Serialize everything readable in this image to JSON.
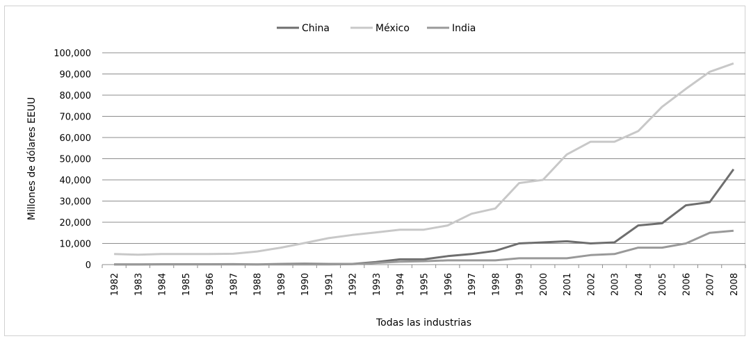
{
  "chart_data": {
    "type": "line",
    "title": "",
    "xlabel": "Todas las industrias",
    "ylabel": "Millones de dólares EEUU",
    "categories": [
      "1982",
      "1983",
      "1984",
      "1985",
      "1986",
      "1987",
      "1988",
      "1989",
      "1990",
      "1991",
      "1992",
      "1993",
      "1994",
      "1995",
      "1996",
      "1997",
      "1998",
      "1999",
      "2000",
      "2001",
      "2002",
      "2003",
      "2004",
      "2005",
      "2006",
      "2007",
      "2008"
    ],
    "ylim": [
      0,
      100000
    ],
    "yticks": [
      {
        "value": 0,
        "label": "0"
      },
      {
        "value": 10000,
        "label": "10,000"
      },
      {
        "value": 20000,
        "label": "20,000"
      },
      {
        "value": 30000,
        "label": "30,000"
      },
      {
        "value": 40000,
        "label": "40,000"
      },
      {
        "value": 50000,
        "label": "50,000"
      },
      {
        "value": 60000,
        "label": "60,000"
      },
      {
        "value": 70000,
        "label": "70,000"
      },
      {
        "value": 80000,
        "label": "80,000"
      },
      {
        "value": 90000,
        "label": "90,000"
      },
      {
        "value": 100000,
        "label": "100,000"
      }
    ],
    "grid": true,
    "legend_position": "top",
    "series": [
      {
        "name": "China",
        "color": "#6e6e6e",
        "values": [
          100,
          100,
          150,
          150,
          150,
          200,
          100,
          300,
          400,
          300,
          300,
          1200,
          2500,
          2500,
          4000,
          5000,
          6500,
          10000,
          10500,
          11000,
          10000,
          10500,
          18500,
          19500,
          28000,
          29500,
          45000
        ]
      },
      {
        "name": "México",
        "color": "#c8c8c8",
        "values": [
          5000,
          4700,
          5000,
          5000,
          5000,
          5100,
          6200,
          8000,
          10200,
          12500,
          14000,
          15200,
          16500,
          16500,
          18500,
          24000,
          26500,
          38500,
          40000,
          52000,
          58000,
          58000,
          63000,
          74500,
          83000,
          91000,
          95000
        ]
      },
      {
        "name": "India",
        "color": "#999999",
        "values": [
          50,
          50,
          50,
          50,
          50,
          50,
          50,
          50,
          100,
          100,
          200,
          800,
          1400,
          1600,
          2000,
          2000,
          2000,
          3000,
          3000,
          3000,
          4500,
          5000,
          8000,
          8000,
          10000,
          15000,
          16000
        ]
      }
    ]
  }
}
